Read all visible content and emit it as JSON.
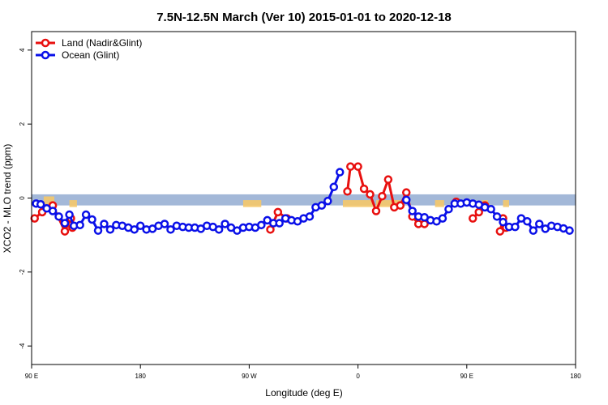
{
  "chart_data": {
    "type": "line",
    "title": "7.5N-12.5N March (Ver 10)   2015-01-01 to 2020-12-18",
    "xlabel": "Longitude (deg E)",
    "ylabel": "XCO2 - MLO trend (ppm)",
    "xlim": [
      90,
      450
    ],
    "ylim": [
      -4.5,
      4.5
    ],
    "x_ticks": [
      {
        "value": 90,
        "label": "90 E"
      },
      {
        "value": 162,
        "label": "180"
      },
      {
        "value": 234,
        "label": "90 W"
      },
      {
        "value": 306,
        "label": "0"
      },
      {
        "value": 378,
        "label": "90 E"
      },
      {
        "value": 450,
        "label": "180"
      }
    ],
    "y_ticks": [
      {
        "value": -4,
        "label": "-4"
      },
      {
        "value": -2,
        "label": "-2"
      },
      {
        "value": 0,
        "label": "0"
      },
      {
        "value": 2,
        "label": "2"
      },
      {
        "value": 4,
        "label": "4"
      }
    ],
    "reference_band": {
      "y_min": -0.2,
      "y_max": 0.1,
      "color": "#a3b8d8"
    },
    "land_mask": {
      "color": "#f5c86a",
      "segments": [
        [
          98,
          105,
          0.0
        ],
        [
          115,
          120,
          -0.1
        ],
        [
          230,
          242,
          -0.1
        ],
        [
          296,
          316,
          -0.1
        ],
        [
          318,
          334,
          -0.1
        ],
        [
          357,
          363,
          -0.1
        ],
        [
          388,
          392,
          -0.1
        ],
        [
          402,
          406,
          -0.1
        ]
      ]
    },
    "legend": {
      "position": "top-left"
    },
    "grid": false,
    "series": [
      {
        "name": "Land (Nadir&Glint)",
        "color": "#e8100f",
        "points": [
          [
            92,
            -0.55
          ],
          [
            97,
            -0.38
          ],
          [
            104,
            -0.2
          ],
          [
            112,
            -0.9
          ],
          [
            116,
            -0.55
          ],
          [
            117,
            -0.8
          ],
          [
            248,
            -0.85
          ],
          [
            253,
            -0.38
          ],
          [
            259,
            -0.55
          ],
          [
            299,
            0.18
          ],
          [
            301,
            0.85
          ],
          [
            306,
            0.85
          ],
          [
            310,
            0.25
          ],
          [
            314,
            0.1
          ],
          [
            318,
            -0.35
          ],
          [
            322,
            0.05
          ],
          [
            326,
            0.5
          ],
          [
            330,
            -0.25
          ],
          [
            334,
            -0.2
          ],
          [
            338,
            0.15
          ],
          [
            342,
            -0.5
          ],
          [
            346,
            -0.7
          ],
          [
            350,
            -0.7
          ],
          [
            371,
            -0.1
          ],
          [
            382,
            -0.55
          ],
          [
            386,
            -0.38
          ],
          [
            390,
            -0.2
          ],
          [
            400,
            -0.9
          ],
          [
            402,
            -0.55
          ],
          [
            404,
            -0.8
          ]
        ]
      },
      {
        "name": "Ocean (Glint)",
        "color": "#0a10e8",
        "points": [
          [
            93,
            -0.15
          ],
          [
            96,
            -0.17
          ],
          [
            100,
            -0.28
          ],
          [
            104,
            -0.35
          ],
          [
            108,
            -0.5
          ],
          [
            112,
            -0.68
          ],
          [
            115,
            -0.45
          ],
          [
            118,
            -0.75
          ],
          [
            122,
            -0.73
          ],
          [
            126,
            -0.45
          ],
          [
            130,
            -0.58
          ],
          [
            134,
            -0.88
          ],
          [
            138,
            -0.7
          ],
          [
            142,
            -0.85
          ],
          [
            146,
            -0.73
          ],
          [
            150,
            -0.75
          ],
          [
            154,
            -0.8
          ],
          [
            158,
            -0.85
          ],
          [
            162,
            -0.75
          ],
          [
            166,
            -0.85
          ],
          [
            170,
            -0.83
          ],
          [
            174,
            -0.75
          ],
          [
            178,
            -0.7
          ],
          [
            182,
            -0.85
          ],
          [
            186,
            -0.75
          ],
          [
            190,
            -0.78
          ],
          [
            194,
            -0.8
          ],
          [
            198,
            -0.8
          ],
          [
            202,
            -0.83
          ],
          [
            206,
            -0.75
          ],
          [
            210,
            -0.78
          ],
          [
            214,
            -0.85
          ],
          [
            218,
            -0.7
          ],
          [
            222,
            -0.8
          ],
          [
            226,
            -0.88
          ],
          [
            230,
            -0.8
          ],
          [
            234,
            -0.78
          ],
          [
            238,
            -0.8
          ],
          [
            242,
            -0.73
          ],
          [
            246,
            -0.6
          ],
          [
            250,
            -0.68
          ],
          [
            254,
            -0.68
          ],
          [
            258,
            -0.55
          ],
          [
            262,
            -0.6
          ],
          [
            266,
            -0.63
          ],
          [
            270,
            -0.55
          ],
          [
            274,
            -0.5
          ],
          [
            278,
            -0.25
          ],
          [
            282,
            -0.2
          ],
          [
            286,
            -0.08
          ],
          [
            290,
            0.3
          ],
          [
            294,
            0.7
          ],
          [
            338,
            -0.05
          ],
          [
            342,
            -0.35
          ],
          [
            346,
            -0.5
          ],
          [
            350,
            -0.52
          ],
          [
            354,
            -0.6
          ],
          [
            358,
            -0.63
          ],
          [
            362,
            -0.55
          ],
          [
            366,
            -0.3
          ],
          [
            370,
            -0.15
          ],
          [
            374,
            -0.15
          ],
          [
            378,
            -0.12
          ],
          [
            382,
            -0.15
          ],
          [
            386,
            -0.18
          ],
          [
            390,
            -0.25
          ],
          [
            394,
            -0.3
          ],
          [
            398,
            -0.5
          ],
          [
            402,
            -0.65
          ],
          [
            406,
            -0.78
          ],
          [
            410,
            -0.78
          ],
          [
            414,
            -0.55
          ],
          [
            418,
            -0.63
          ],
          [
            422,
            -0.88
          ],
          [
            426,
            -0.7
          ],
          [
            430,
            -0.83
          ],
          [
            434,
            -0.75
          ],
          [
            438,
            -0.78
          ],
          [
            442,
            -0.82
          ],
          [
            446,
            -0.88
          ]
        ]
      }
    ]
  }
}
